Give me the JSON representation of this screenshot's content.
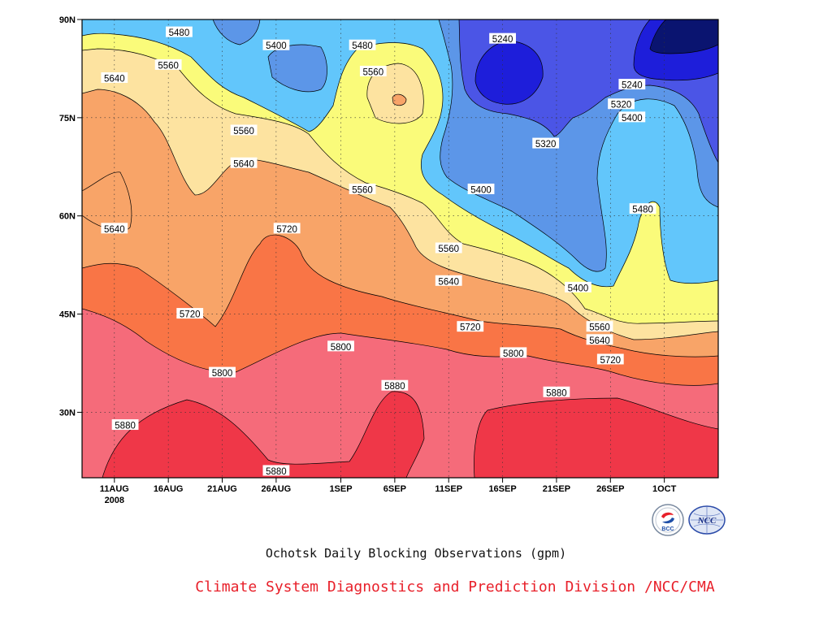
{
  "chart_data": {
    "type": "heatmap",
    "subtype": "filled-contour (time-latitude Hovmoller)",
    "title": "Ochotsk Daily Blocking Observations (gpm)",
    "credit": "Climate System Diagnostics and Prediction Division /NCC/CMA",
    "x_ticks": [
      {
        "label": "11AUG",
        "sub": "2008",
        "date": "2008-08-11"
      },
      {
        "label": "16AUG",
        "sub": "",
        "date": "2008-08-16"
      },
      {
        "label": "21AUG",
        "sub": "",
        "date": "2008-08-21"
      },
      {
        "label": "26AUG",
        "sub": "",
        "date": "2008-08-26"
      },
      {
        "label": "1SEP",
        "sub": "",
        "date": "2008-09-01"
      },
      {
        "label": "6SEP",
        "sub": "",
        "date": "2008-09-06"
      },
      {
        "label": "11SEP",
        "sub": "",
        "date": "2008-09-11"
      },
      {
        "label": "16SEP",
        "sub": "",
        "date": "2008-09-16"
      },
      {
        "label": "21SEP",
        "sub": "",
        "date": "2008-09-21"
      },
      {
        "label": "26SEP",
        "sub": "",
        "date": "2008-09-26"
      },
      {
        "label": "1OCT",
        "sub": "",
        "date": "2008-10-01"
      }
    ],
    "y_ticks": [
      {
        "label": "30N",
        "lat": 30
      },
      {
        "label": "45N",
        "lat": 45
      },
      {
        "label": "60N",
        "lat": 60
      },
      {
        "label": "75N",
        "lat": 75
      },
      {
        "label": "90N",
        "lat": 90
      }
    ],
    "xlim": [
      "2008-08-08",
      "2008-10-06"
    ],
    "ylim": [
      20,
      90
    ],
    "grid": true,
    "contour_levels": [
      5240,
      5320,
      5400,
      5480,
      5560,
      5640,
      5720,
      5800,
      5880
    ],
    "fill_colors": [
      "#0a1470",
      "#1e1eda",
      "#4b55e6",
      "#5c96e8",
      "#62c6fb",
      "#fafb7a",
      "#fde3a0",
      "#f8a468",
      "#f97546",
      "#f56b7a",
      "#ef3748"
    ],
    "contour_labels": [
      {
        "text": "5480",
        "date": "2008-08-17",
        "lat": 88
      },
      {
        "text": "5400",
        "date": "2008-08-26",
        "lat": 86
      },
      {
        "text": "5480",
        "date": "2008-09-03",
        "lat": 86
      },
      {
        "text": "5240",
        "date": "2008-09-16",
        "lat": 87
      },
      {
        "text": "5560",
        "date": "2008-08-16",
        "lat": 83
      },
      {
        "text": "5560",
        "date": "2008-09-04",
        "lat": 82
      },
      {
        "text": "5640",
        "date": "2008-08-11",
        "lat": 81
      },
      {
        "text": "5240",
        "date": "2008-09-28",
        "lat": 80
      },
      {
        "text": "5320",
        "date": "2008-09-27",
        "lat": 77
      },
      {
        "text": "5400",
        "date": "2008-09-28",
        "lat": 75
      },
      {
        "text": "5560",
        "date": "2008-08-23",
        "lat": 73
      },
      {
        "text": "5320",
        "date": "2008-09-20",
        "lat": 71
      },
      {
        "text": "5640",
        "date": "2008-08-23",
        "lat": 68
      },
      {
        "text": "5560",
        "date": "2008-09-03",
        "lat": 64
      },
      {
        "text": "5400",
        "date": "2008-09-14",
        "lat": 64
      },
      {
        "text": "5480",
        "date": "2008-09-29",
        "lat": 61
      },
      {
        "text": "5640",
        "date": "2008-08-11",
        "lat": 58
      },
      {
        "text": "5720",
        "date": "2008-08-27",
        "lat": 58
      },
      {
        "text": "5560",
        "date": "2008-09-11",
        "lat": 55
      },
      {
        "text": "5640",
        "date": "2008-09-11",
        "lat": 50
      },
      {
        "text": "5400",
        "date": "2008-09-23",
        "lat": 49
      },
      {
        "text": "5720",
        "date": "2008-08-18",
        "lat": 45
      },
      {
        "text": "5720",
        "date": "2008-09-13",
        "lat": 43
      },
      {
        "text": "5560",
        "date": "2008-09-25",
        "lat": 43
      },
      {
        "text": "5640",
        "date": "2008-09-25",
        "lat": 41
      },
      {
        "text": "5800",
        "date": "2008-09-01",
        "lat": 40
      },
      {
        "text": "5800",
        "date": "2008-09-17",
        "lat": 39
      },
      {
        "text": "5720",
        "date": "2008-09-26",
        "lat": 38
      },
      {
        "text": "5800",
        "date": "2008-08-21",
        "lat": 36
      },
      {
        "text": "5880",
        "date": "2008-09-06",
        "lat": 34
      },
      {
        "text": "5880",
        "date": "2008-09-21",
        "lat": 33
      },
      {
        "text": "5880",
        "date": "2008-08-12",
        "lat": 28
      },
      {
        "text": "5880",
        "date": "2008-08-26",
        "lat": 21
      }
    ]
  },
  "logos": [
    {
      "name": "bcc-logo",
      "text": "BCC"
    },
    {
      "name": "ncc-logo",
      "text": "NCC"
    }
  ]
}
